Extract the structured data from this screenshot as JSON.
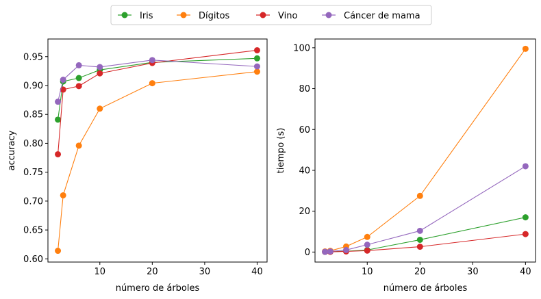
{
  "legend": {
    "placement": "top-center",
    "entries": [
      {
        "name": "Iris",
        "color": "#2ca02c"
      },
      {
        "name": "Dígitos",
        "color": "#ff7f0e"
      },
      {
        "name": "Vino",
        "color": "#d62728"
      },
      {
        "name": "Cáncer de mama",
        "color": "#9467bd"
      }
    ]
  },
  "chart_data": [
    {
      "type": "line",
      "xlabel": "número de árboles",
      "ylabel": "accuracy",
      "xlim": [
        0.1,
        41.9
      ],
      "ylim": [
        0.5945,
        0.9805
      ],
      "xticks": [
        10,
        20,
        30,
        40
      ],
      "yticks": [
        0.6,
        0.65,
        0.7,
        0.75,
        0.8,
        0.85,
        0.9,
        0.95
      ],
      "ytick_labels": [
        "0.60",
        "0.65",
        "0.70",
        "0.75",
        "0.80",
        "0.85",
        "0.90",
        "0.95"
      ],
      "grid": false,
      "x": [
        2,
        3,
        6,
        10,
        20,
        40
      ],
      "series": [
        {
          "name": "Iris",
          "color": "#2ca02c",
          "values": [
            0.841,
            0.907,
            0.913,
            0.927,
            0.94,
            0.947
          ]
        },
        {
          "name": "Dígitos",
          "color": "#ff7f0e",
          "values": [
            0.614,
            0.71,
            0.796,
            0.86,
            0.904,
            0.924
          ]
        },
        {
          "name": "Vino",
          "color": "#d62728",
          "values": [
            0.781,
            0.893,
            0.899,
            0.921,
            0.939,
            0.961
          ]
        },
        {
          "name": "Cáncer de mama",
          "color": "#9467bd",
          "values": [
            0.872,
            0.91,
            0.935,
            0.932,
            0.944,
            0.933
          ]
        }
      ]
    },
    {
      "type": "line",
      "xlabel": "número de árboles",
      "ylabel": "tiempo (s)",
      "xlim": [
        0.1,
        41.9
      ],
      "ylim": [
        -4.9,
        104.3
      ],
      "xticks": [
        10,
        20,
        30,
        40
      ],
      "yticks": [
        0,
        20,
        40,
        60,
        80,
        100
      ],
      "ytick_labels": [
        "0",
        "20",
        "40",
        "60",
        "80",
        "100"
      ],
      "grid": false,
      "x": [
        2,
        3,
        6,
        10,
        20,
        40
      ],
      "series": [
        {
          "name": "Iris",
          "color": "#2ca02c",
          "values": [
            0.1,
            0.2,
            0.4,
            1.0,
            6.0,
            17.0
          ]
        },
        {
          "name": "Dígitos",
          "color": "#ff7f0e",
          "values": [
            0.3,
            0.6,
            2.7,
            7.4,
            27.5,
            99.5
          ]
        },
        {
          "name": "Vino",
          "color": "#d62728",
          "values": [
            0.1,
            0.1,
            0.3,
            0.7,
            2.6,
            8.8
          ]
        },
        {
          "name": "Cáncer de mama",
          "color": "#9467bd",
          "values": [
            0.1,
            0.3,
            1.0,
            3.6,
            10.4,
            42.0
          ]
        }
      ]
    }
  ]
}
